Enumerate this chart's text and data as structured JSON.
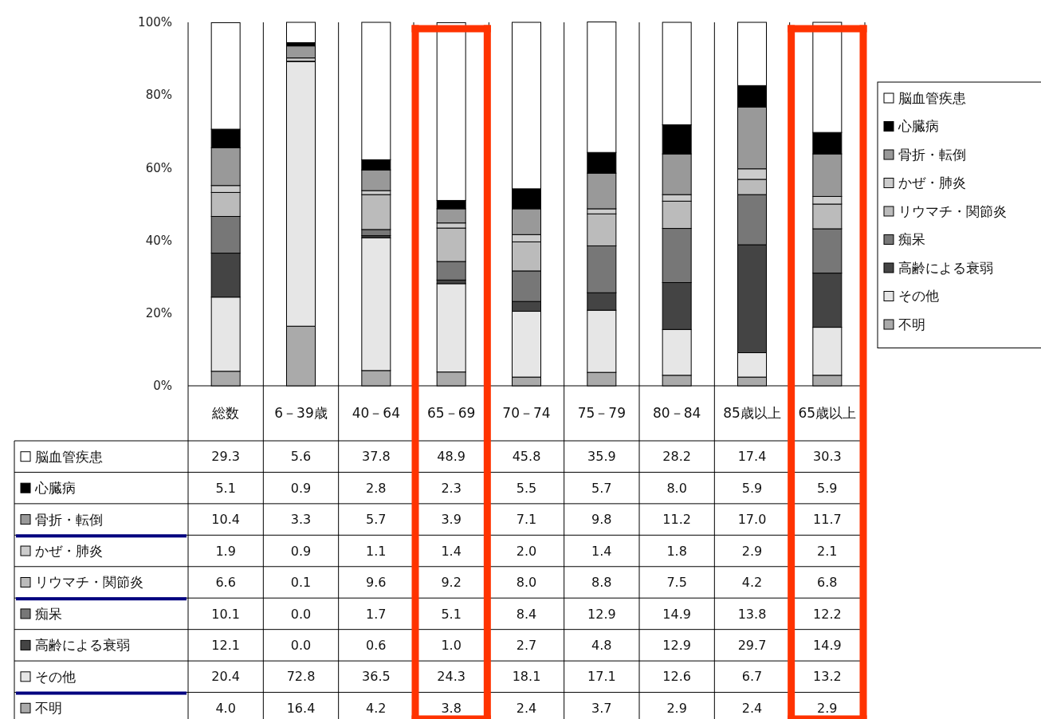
{
  "chart_data": {
    "type": "bar",
    "stacked": true,
    "legend": "right",
    "ylim": [
      0,
      100
    ],
    "yticks": [
      {
        "value": 0,
        "label": "0%"
      },
      {
        "value": 20,
        "label": "20%"
      },
      {
        "value": 40,
        "label": "40%"
      },
      {
        "value": 60,
        "label": "60%"
      },
      {
        "value": 80,
        "label": "80%"
      },
      {
        "value": 100,
        "label": "100%"
      }
    ],
    "categories": [
      "総数",
      "6－39歳",
      "40－64",
      "65－69",
      "70－74",
      "75－79",
      "80－84",
      "85歳以上",
      "65歳以上"
    ],
    "series": [
      {
        "name": "不明",
        "color": "#aaaaaa",
        "values": [
          4.0,
          16.4,
          4.2,
          3.8,
          2.4,
          3.7,
          2.9,
          2.4,
          2.9
        ],
        "value_labels": [
          "4.0",
          "16.4",
          "4.2",
          "3.8",
          "2.4",
          "3.7",
          "2.9",
          "2.4",
          "2.9"
        ]
      },
      {
        "name": "その他",
        "color": "#e6e6e6",
        "values": [
          20.4,
          72.8,
          36.5,
          24.3,
          18.1,
          17.1,
          12.6,
          6.7,
          13.2
        ],
        "value_labels": [
          "20.4",
          "72.8",
          "36.5",
          "24.3",
          "18.1",
          "17.1",
          "12.6",
          "6.7",
          "13.2"
        ]
      },
      {
        "name": "高齢による衰弱",
        "color": "#444444",
        "values": [
          12.1,
          0.0,
          0.6,
          1.0,
          2.7,
          4.8,
          12.9,
          29.7,
          14.9
        ],
        "value_labels": [
          "12.1",
          "0.0",
          "0.6",
          "1.0",
          "2.7",
          "4.8",
          "12.9",
          "29.7",
          "14.9"
        ]
      },
      {
        "name": "痴呆",
        "color": "#777777",
        "values": [
          10.1,
          0.0,
          1.7,
          5.1,
          8.4,
          12.9,
          14.9,
          13.8,
          12.2
        ],
        "value_labels": [
          "10.1",
          "0.0",
          "1.7",
          "5.1",
          "8.4",
          "12.9",
          "14.9",
          "13.8",
          "12.2"
        ]
      },
      {
        "name": "リウマチ・関節炎",
        "color": "#bbbbbb",
        "values": [
          6.6,
          0.1,
          9.6,
          9.2,
          8.0,
          8.8,
          7.5,
          4.2,
          6.8
        ],
        "value_labels": [
          "6.6",
          "0.1",
          "9.6",
          "9.2",
          "8.0",
          "8.8",
          "7.5",
          "4.2",
          "6.8"
        ]
      },
      {
        "name": "かぜ・肺炎",
        "color": "#cccccc",
        "values": [
          1.9,
          0.9,
          1.1,
          1.4,
          2.0,
          1.4,
          1.8,
          2.9,
          2.1
        ],
        "value_labels": [
          "1.9",
          "0.9",
          "1.1",
          "1.4",
          "2.0",
          "1.4",
          "1.8",
          "2.9",
          "2.1"
        ]
      },
      {
        "name": "骨折・転倒",
        "color": "#999999",
        "values": [
          10.4,
          3.3,
          5.7,
          3.9,
          7.1,
          9.8,
          11.2,
          17.0,
          11.7
        ],
        "value_labels": [
          "10.4",
          "3.3",
          "5.7",
          "3.9",
          "7.1",
          "9.8",
          "11.2",
          "17.0",
          "11.7"
        ]
      },
      {
        "name": "心臓病",
        "color": "#000000",
        "values": [
          5.1,
          0.9,
          2.8,
          2.3,
          5.5,
          5.7,
          8.0,
          5.9,
          5.9
        ],
        "value_labels": [
          "5.1",
          "0.9",
          "2.8",
          "2.3",
          "5.5",
          "5.7",
          "8.0",
          "5.9",
          "5.9"
        ]
      },
      {
        "name": "脳血管疾患",
        "color": "#ffffff",
        "values": [
          29.3,
          5.6,
          37.8,
          48.9,
          45.8,
          35.9,
          28.2,
          17.4,
          30.3
        ],
        "value_labels": [
          "29.3",
          "5.6",
          "37.8",
          "48.9",
          "45.8",
          "35.9",
          "28.2",
          "17.4",
          "30.3"
        ]
      }
    ]
  }
}
